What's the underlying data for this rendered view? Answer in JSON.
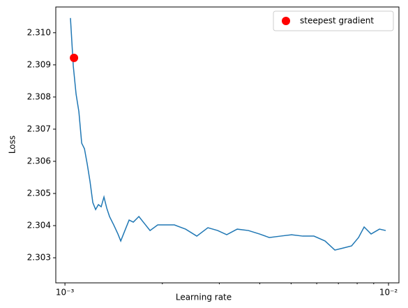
{
  "chart_data": {
    "type": "line",
    "xlabel": "Learning rate",
    "ylabel": "Loss",
    "xscale": "log",
    "xlim": [
      0.000937,
      0.01077
    ],
    "xticks": [
      {
        "value": 0.001,
        "label": "10⁻³"
      },
      {
        "value": 0.01,
        "label": "10⁻²"
      }
    ],
    "xminorticks": [
      0.002,
      0.003,
      0.004,
      0.005,
      0.006,
      0.007,
      0.008,
      0.009
    ],
    "ylim": [
      2.30222,
      2.3108
    ],
    "yticks": [
      2.303,
      2.304,
      2.305,
      2.306,
      2.307,
      2.308,
      2.309,
      {
        "value": 2.31,
        "label": "2.310"
      }
    ],
    "grid": false,
    "legend": "upper right",
    "series": [
      {
        "color": "#1f77b4",
        "x": [
          0.00104,
          0.0010613,
          0.0010826,
          0.0011043,
          0.0011265,
          0.001149,
          0.001172,
          0.0011955,
          0.0012195,
          0.0012439,
          0.0012688,
          0.0012942,
          0.0013201,
          0.0013465,
          0.0013735,
          0.0014151,
          0.0014582,
          0.0014874,
          0.0015323,
          0.0015788,
          0.0016266,
          0.0016924,
          0.0017609,
          0.0018322,
          0.0019352,
          0.0020535,
          0.0021794,
          0.0023598,
          0.0025554,
          0.0027657,
          0.0029648,
          0.0031623,
          0.0034071,
          0.0036891,
          0.0039945,
          0.0042811,
          0.0046352,
          0.0050178,
          0.0054318,
          0.0058811,
          0.0063666,
          0.0068265,
          0.0072446,
          0.0076878,
          0.0080795,
          0.0084072,
          0.0088346,
          0.0093756,
          0.0098035
        ],
        "values": [
          2.310457,
          2.308957,
          2.308087,
          2.307544,
          2.306565,
          2.306391,
          2.305913,
          2.30537,
          2.304717,
          2.3045,
          2.304652,
          2.304587,
          2.304891,
          2.304543,
          2.304283,
          2.304022,
          2.303739,
          2.303522,
          2.303848,
          2.304174,
          2.304109,
          2.304283,
          2.304065,
          2.303848,
          2.304022,
          2.304022,
          2.304022,
          2.303891,
          2.303674,
          2.303935,
          2.303848,
          2.303717,
          2.303891,
          2.303848,
          2.303739,
          2.30363,
          2.303674,
          2.303717,
          2.303674,
          2.303674,
          2.303522,
          2.303239,
          2.303304,
          2.30337,
          2.30363,
          2.303957,
          2.303739,
          2.303891,
          2.303848
        ]
      },
      {
        "name": "steepest gradient",
        "color": "#ff0000",
        "marker": "circle",
        "x": [
          0.0010666
        ],
        "values": [
          2.309218
        ]
      }
    ]
  }
}
